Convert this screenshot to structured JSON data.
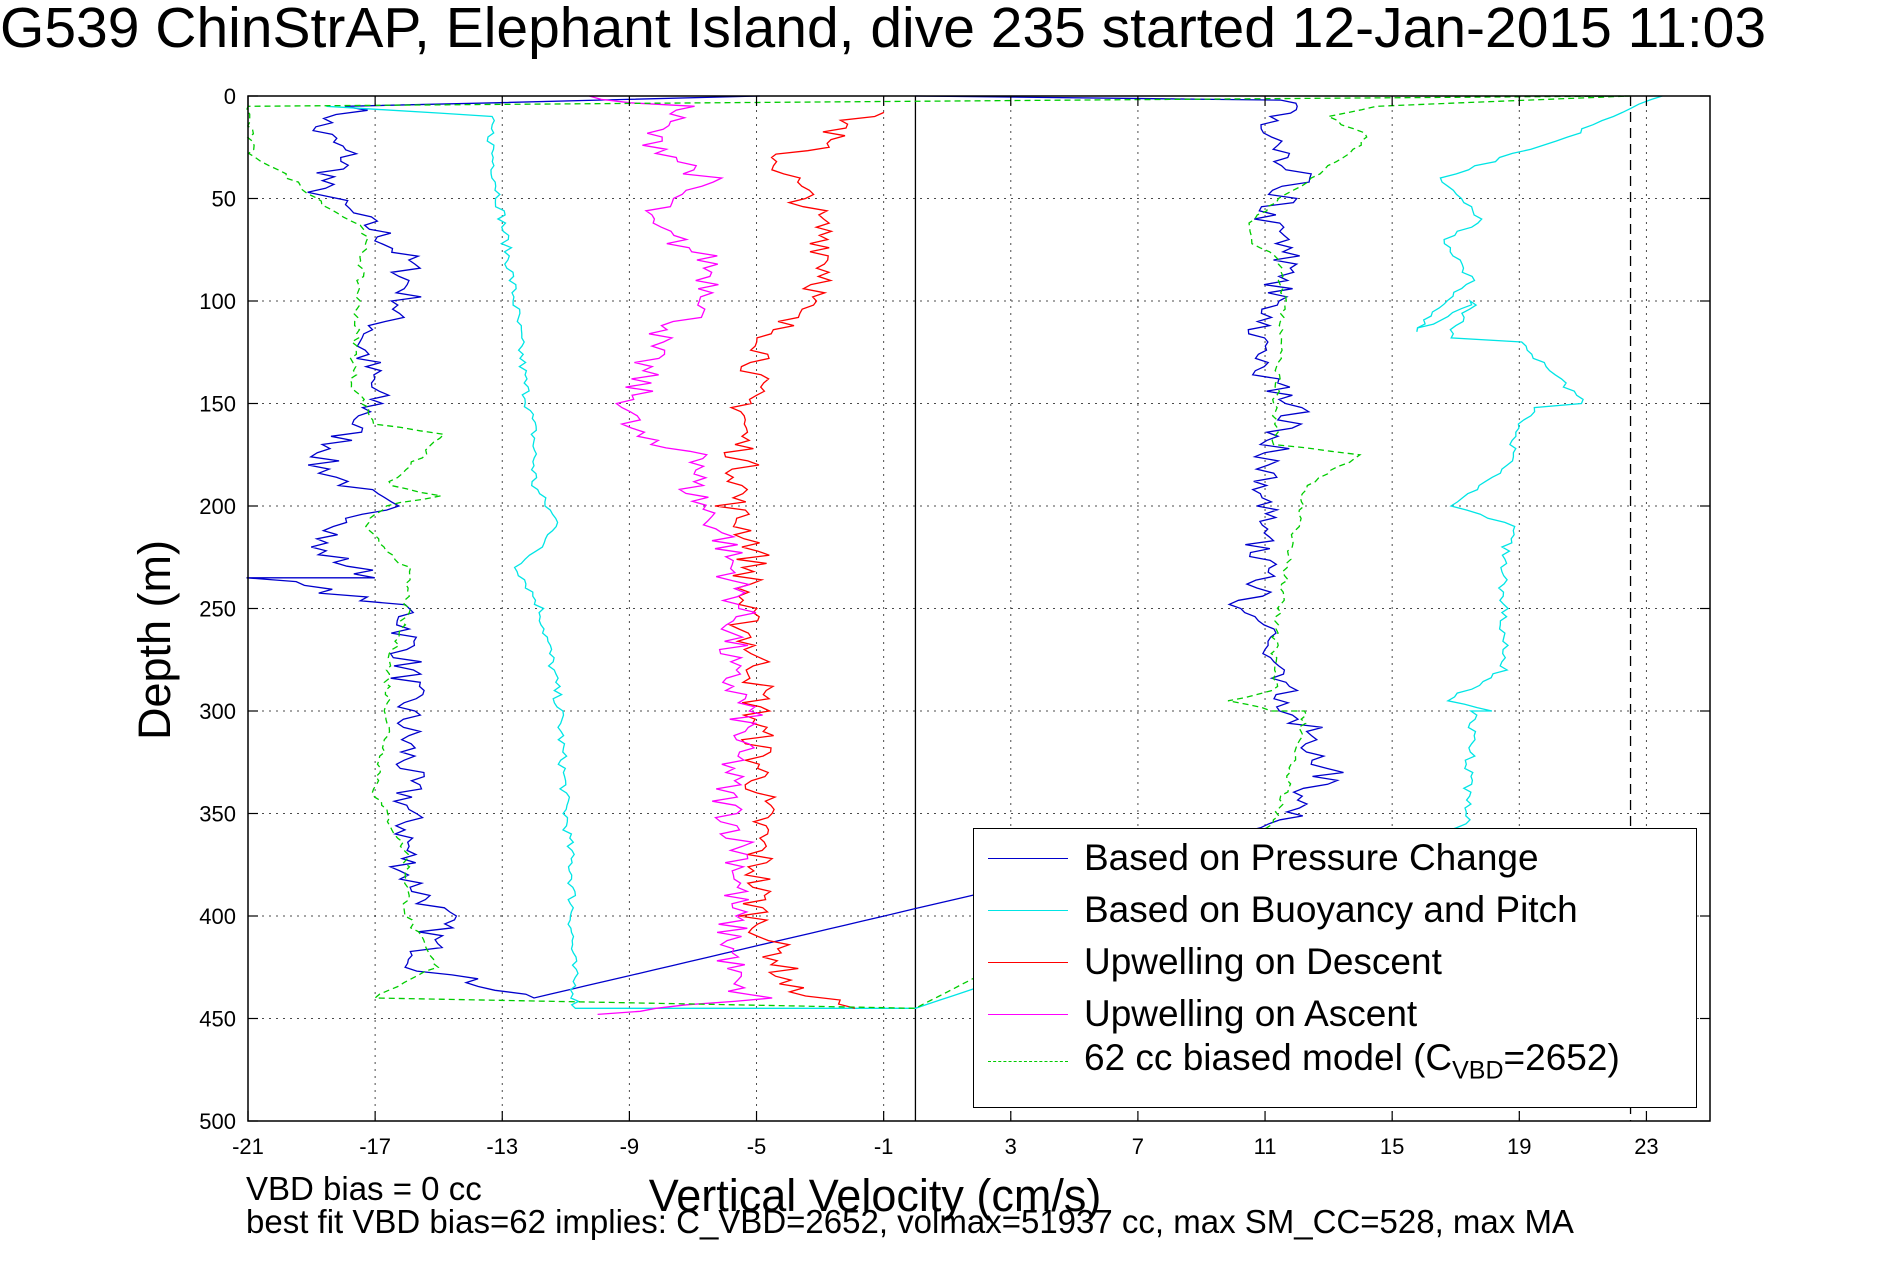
{
  "title": "G539 ChinStrAP, Elephant Island, dive 235 started 12-Jan-2015 11:03",
  "xlabel": "Vertical Velocity (cm/s)",
  "ylabel": "Depth (m)",
  "notes": {
    "line1": "VBD bias = 0 cc",
    "line2": "best fit VBD bias=62 implies: C_VBD=2652, volmax=51937 cc, max SM_CC=528, max MA"
  },
  "legend": {
    "pressure": "Based on Pressure Change",
    "buoyancy": "Based on Buoyancy and Pitch",
    "descent": "Upwelling on Descent",
    "ascent": "Upwelling on Ascent",
    "model_prefix": "62 cc biased model (C",
    "model_sub": "VBD",
    "model_suffix": "=2652)"
  },
  "colors": {
    "pressure": "#0000cc",
    "buoyancy": "#00e5e5",
    "descent": "#ff0000",
    "ascent": "#ff00ff",
    "model": "#00cc00"
  },
  "chart_data": {
    "type": "line",
    "title": "G539 ChinStrAP, Elephant Island, dive 235 started 12-Jan-2015 11:03",
    "xlabel": "Vertical Velocity (cm/s)",
    "ylabel": "Depth (m)",
    "xlim": [
      -21,
      25
    ],
    "ylim": [
      0,
      500
    ],
    "y_reversed": true,
    "x_ticks": [
      -21,
      -17,
      -13,
      -9,
      -5,
      -1,
      3,
      7,
      11,
      15,
      19,
      23
    ],
    "y_ticks": [
      0,
      50,
      100,
      150,
      200,
      250,
      300,
      350,
      400,
      450,
      500
    ],
    "grid": true,
    "legend_position": "bottom-right",
    "vertical_lines": [
      {
        "x": 0,
        "style": "solid"
      },
      {
        "x": 22.5,
        "style": "dashed"
      }
    ],
    "series": [
      {
        "name": "Based on Pressure Change",
        "x": [
          -4.9,
          -17.4,
          -18.9,
          -17.8,
          -18.9,
          -17.0,
          -16.0,
          -16.0,
          -17.4,
          -17.0,
          -18.8,
          -16.7,
          -19.0,
          -17.0,
          -20.5,
          -16.0,
          -16.0,
          -16.0,
          -16.0,
          -16.0,
          -14.9,
          -15.6,
          -12.0,
          11.4,
          13.0,
          12.0,
          11.1,
          11.1,
          9.7,
          10.9,
          10.8,
          11.0,
          10.9,
          11.4,
          12.0,
          10.6,
          11.3,
          11.7,
          11.0,
          12.0,
          11.5,
          11.2,
          12.0,
          11.5,
          0
        ],
        "y": [
          0,
          5,
          15,
          30,
          45,
          65,
          80,
          100,
          120,
          150,
          180,
          200,
          220,
          235,
          235,
          250,
          270,
          300,
          340,
          380,
          400,
          425,
          440,
          355,
          330,
          300,
          280,
          260,
          250,
          240,
          215,
          200,
          180,
          170,
          150,
          130,
          100,
          80,
          60,
          40,
          20,
          10,
          5,
          2,
          0
        ]
      },
      {
        "name": "Based on Buoyancy and Pitch",
        "x": [
          -18.5,
          -13.4,
          -13.3,
          -13.0,
          -12.6,
          -12.3,
          -12.0,
          -12.0,
          -11.6,
          -11.2,
          -12.5,
          -11.8,
          -11.4,
          -11.2,
          -11.0,
          -10.8,
          -10.8,
          -10.7,
          -10.7,
          0,
          17.4,
          17.4,
          17.6,
          18.2,
          16.7,
          18.5,
          18.5,
          18.6,
          18.8,
          17.0,
          18.7,
          18.8,
          19.0,
          19.5,
          21.0,
          19.0,
          16.8,
          17.6,
          15.7,
          17.5,
          16.7,
          17.8,
          16.6,
          18.5,
          20.5,
          22.0,
          23.5
        ],
        "y": [
          5,
          10,
          30,
          60,
          100,
          140,
          165,
          190,
          200,
          210,
          230,
          250,
          280,
          300,
          350,
          380,
          420,
          440,
          445,
          445,
          355,
          330,
          300,
          300,
          295,
          280,
          240,
          220,
          210,
          200,
          180,
          170,
          160,
          152,
          150,
          120,
          118,
          100,
          115,
          90,
          70,
          60,
          40,
          30,
          20,
          10,
          0
        ]
      },
      {
        "name": "Upwelling on Descent",
        "x": [
          -1.0,
          -1.8,
          -3.2,
          -4.4,
          -3.5,
          -2.8,
          -2.7,
          -4.2,
          -5.2,
          -5.5,
          -5.4,
          -5.8,
          -5.0,
          -5.5,
          -4.9,
          -5.0,
          -4.9,
          -4.9,
          -5.0,
          -4.3,
          -4.0,
          -1.9
        ],
        "y": [
          8,
          10,
          25,
          30,
          50,
          70,
          90,
          110,
          140,
          170,
          190,
          200,
          220,
          250,
          280,
          300,
          330,
          360,
          400,
          420,
          435,
          445
        ]
      },
      {
        "name": "Upwelling on Ascent",
        "x": [
          -10.8,
          -7.3,
          -8.4,
          -6.6,
          -8.7,
          -6.5,
          -6.3,
          -8.3,
          -8.9,
          -9.1,
          -8.5,
          -6.4,
          -7.1,
          -6.0,
          -5.5,
          -6.0,
          -5.3,
          -6.0,
          -5.4,
          -5.8,
          -5.8,
          -5.8,
          -4.9,
          -8.0,
          -10.0
        ],
        "y": [
          0,
          5,
          20,
          40,
          60,
          80,
          100,
          120,
          150,
          160,
          170,
          175,
          190,
          215,
          250,
          280,
          300,
          340,
          370,
          400,
          420,
          435,
          440,
          445,
          448
        ]
      },
      {
        "name": "62 cc biased model (CVBD=2652)",
        "x": [
          22.5,
          -21.0,
          -20.9,
          -19.5,
          -18.4,
          -17.3,
          -17.5,
          -17.7,
          -17.0,
          -14.8,
          -16.6,
          -15.0,
          -16.7,
          -17.4,
          -16.0,
          -16.0,
          -16.6,
          -16.6,
          -17.0,
          -16.0,
          -16.0,
          -15.1,
          -17.0,
          0,
          11.3,
          12.0,
          12.3,
          11.3,
          9.9,
          11.3,
          11.3,
          11.7,
          12.0,
          12.3,
          14.0,
          11.3,
          11.3,
          11.6,
          11.4,
          10.5,
          10.6,
          14.3,
          12.9,
          14.5,
          22.5
        ],
        "y": [
          0,
          5,
          28,
          42,
          55,
          65,
          90,
          140,
          160,
          165,
          190,
          195,
          200,
          210,
          230,
          250,
          280,
          310,
          340,
          370,
          400,
          425,
          440,
          445,
          355,
          320,
          300,
          300,
          295,
          290,
          260,
          230,
          210,
          190,
          175,
          170,
          150,
          100,
          80,
          70,
          60,
          20,
          10,
          5,
          0
        ]
      }
    ]
  }
}
